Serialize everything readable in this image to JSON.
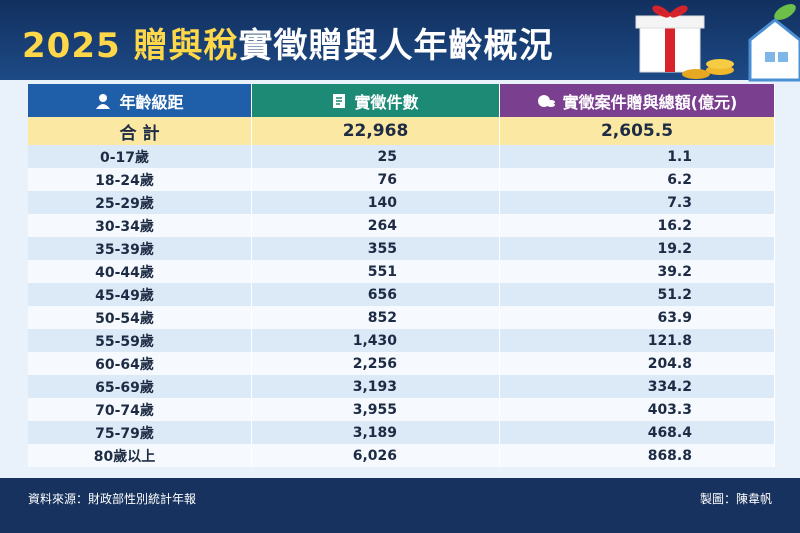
{
  "title": {
    "highlight": "2025 贈與稅",
    "rest": "實徵贈與人年齡概況"
  },
  "table": {
    "header": [
      "年齡級距",
      "實徵件數",
      "實徵案件贈與總額(億元)"
    ],
    "total": [
      "合 計",
      "22,968",
      "2,605.5"
    ],
    "rows": [
      [
        "0-17歲",
        "25",
        "1.1"
      ],
      [
        "18-24歲",
        "76",
        "6.2"
      ],
      [
        "25-29歲",
        "140",
        "7.3"
      ],
      [
        "30-34歲",
        "264",
        "16.2"
      ],
      [
        "35-39歲",
        "355",
        "19.2"
      ],
      [
        "40-44歲",
        "551",
        "39.2"
      ],
      [
        "45-49歲",
        "656",
        "51.2"
      ],
      [
        "50-54歲",
        "852",
        "63.9"
      ],
      [
        "55-59歲",
        "1,430",
        "121.8"
      ],
      [
        "60-64歲",
        "2,256",
        "204.8"
      ],
      [
        "65-69歲",
        "3,193",
        "334.2"
      ],
      [
        "70-74歲",
        "3,955",
        "403.3"
      ],
      [
        "75-79歲",
        "3,189",
        "468.4"
      ],
      [
        "80歲以上",
        "6,026",
        "868.8"
      ]
    ]
  },
  "footer": {
    "source": "資料來源：財政部性別統計年報",
    "credit": "製圖：陳韋帆"
  }
}
